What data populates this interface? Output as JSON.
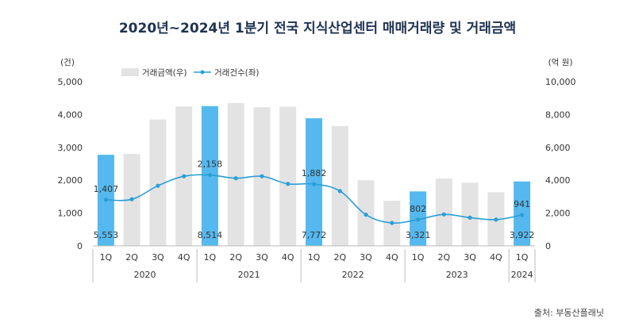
{
  "chart_data": {
    "type": "bar",
    "title": "2020년~2024년 1분기 전국 지식산업센터 매매거래량 및 거래금액",
    "left_unit": "(건)",
    "right_unit": "(억 원)",
    "source": "출처: 부동산플래닛",
    "categories": [
      "1Q",
      "2Q",
      "3Q",
      "4Q",
      "1Q",
      "2Q",
      "3Q",
      "4Q",
      "1Q",
      "2Q",
      "3Q",
      "4Q",
      "1Q",
      "2Q",
      "3Q",
      "4Q",
      "1Q"
    ],
    "year_groups": [
      {
        "label": "2020",
        "count": 4
      },
      {
        "label": "2021",
        "count": 4
      },
      {
        "label": "2022",
        "count": 4
      },
      {
        "label": "2023",
        "count": 4
      },
      {
        "label": "2024",
        "count": 1
      }
    ],
    "left_axis": {
      "min": 0,
      "max": 5000,
      "ticks": [
        "0",
        "1,000",
        "2,000",
        "3,000",
        "4,000",
        "5,000"
      ]
    },
    "right_axis": {
      "min": 0,
      "max": 10000,
      "ticks": [
        "0",
        "2,000",
        "4,000",
        "6,000",
        "8,000",
        "10,000"
      ]
    },
    "series": [
      {
        "name": "거래금액(우)",
        "type": "bar",
        "axis": "right",
        "color": "#e3e3e3",
        "highlight_color": "#55b8ee",
        "highlight_indices": [
          0,
          4,
          8,
          12,
          16
        ],
        "values": [
          5553,
          5600,
          7700,
          8500,
          8514,
          8700,
          8450,
          8480,
          7772,
          7300,
          4000,
          2750,
          3321,
          4100,
          3850,
          3270,
          3922
        ]
      },
      {
        "name": "거래건수(좌)",
        "type": "line",
        "axis": "left",
        "color": "#2a9fd6",
        "values": [
          1407,
          1420,
          1830,
          2120,
          2158,
          2060,
          2120,
          1890,
          1882,
          1670,
          950,
          700,
          802,
          960,
          860,
          800,
          941
        ]
      }
    ],
    "annotations": [
      {
        "index": 0,
        "count_label": "1,407",
        "amount_label": "5,553"
      },
      {
        "index": 4,
        "count_label": "2,158",
        "amount_label": "8,514"
      },
      {
        "index": 8,
        "count_label": "1,882",
        "amount_label": "7,772"
      },
      {
        "index": 12,
        "count_label": "802",
        "amount_label": "3,321"
      },
      {
        "index": 16,
        "count_label": "941",
        "amount_label": "3,922"
      }
    ]
  }
}
